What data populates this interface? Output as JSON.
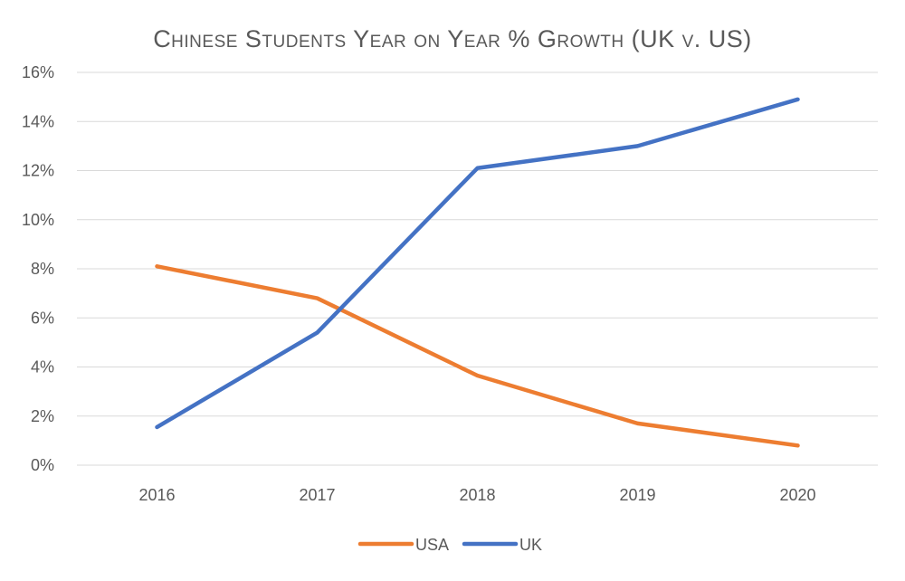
{
  "chart_data": {
    "type": "line",
    "title": "Chinese Students Year on Year % Growth (UK v. US)",
    "xlabel": "",
    "ylabel": "",
    "categories": [
      "2016",
      "2017",
      "2018",
      "2019",
      "2020"
    ],
    "ylim": [
      0,
      16
    ],
    "yticks": [
      0,
      2,
      4,
      6,
      8,
      10,
      12,
      14,
      16
    ],
    "ytick_labels": [
      "0%",
      "2%",
      "4%",
      "6%",
      "8%",
      "10%",
      "12%",
      "14%",
      "16%"
    ],
    "grid": true,
    "legend_position": "bottom",
    "series": [
      {
        "name": "USA",
        "color": "#ED7D31",
        "values": [
          8.1,
          6.8,
          3.65,
          1.7,
          0.8
        ]
      },
      {
        "name": "UK",
        "color": "#4472C4",
        "values": [
          1.55,
          5.4,
          12.1,
          13.0,
          14.9
        ]
      }
    ]
  }
}
